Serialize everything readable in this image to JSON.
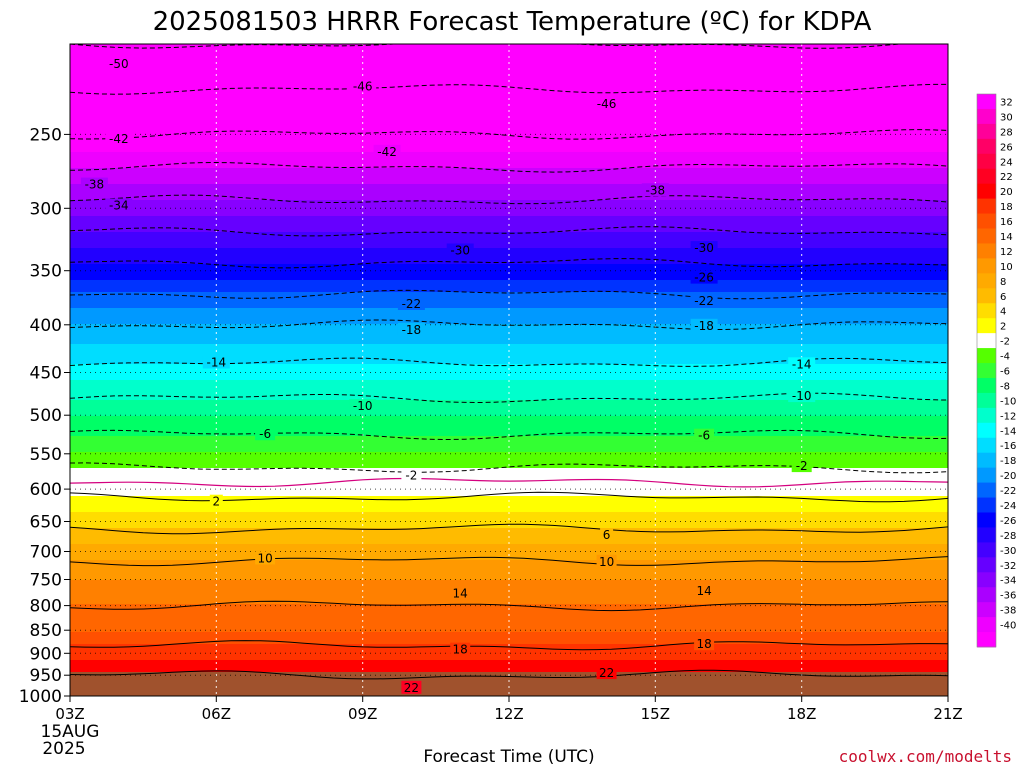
{
  "chart_data": {
    "type": "heatmap",
    "title": "2025081503 HRRR Forecast Temperature (ºC) for KDPA",
    "xlabel": "Forecast Time (UTC)",
    "ylabel": "",
    "x": [
      "03Z",
      "06Z",
      "09Z",
      "12Z",
      "15Z",
      "18Z",
      "21Z"
    ],
    "x_sub_labels": [
      "15AUG",
      "2025"
    ],
    "y_ticks": [
      250,
      300,
      350,
      400,
      450,
      500,
      550,
      600,
      650,
      700,
      750,
      800,
      850,
      900,
      950,
      1000
    ],
    "y_scale": "log (pressure, hPa, increasing downward)",
    "ylim": [
      200,
      1000
    ],
    "colorbar": {
      "labels": [
        32,
        30,
        28,
        26,
        24,
        22,
        20,
        18,
        16,
        14,
        12,
        10,
        8,
        6,
        4,
        2,
        -2,
        -4,
        -6,
        -8,
        -10,
        -12,
        -14,
        -16,
        -18,
        -20,
        -22,
        -24,
        -26,
        -28,
        -30,
        -32,
        -34,
        -36,
        -38,
        -40
      ],
      "colors": [
        "#ff00ff",
        "#ff00cc",
        "#ff0099",
        "#ff0066",
        "#ff0044",
        "#ff0022",
        "#ff0000",
        "#ff3300",
        "#ff5000",
        "#ff6600",
        "#ff8000",
        "#ff9900",
        "#ffaa00",
        "#ffbb00",
        "#ffdd00",
        "#ffff00",
        "#ffffff",
        "#55ff00",
        "#33ff33",
        "#00ff66",
        "#00ff99",
        "#00ffcc",
        "#00ffff",
        "#00ddff",
        "#00bbff",
        "#0099ff",
        "#0066ff",
        "#0033ff",
        "#0000ff",
        "#2200ff",
        "#4400ff",
        "#6600ff",
        "#8800ff",
        "#aa00ff",
        "#cc00ff",
        "#ee00ff",
        "#ff00ff"
      ]
    },
    "temperature_profile": [
      {
        "pressure": 1000,
        "temp": 24
      },
      {
        "pressure": 950,
        "temp": 22
      },
      {
        "pressure": 900,
        "temp": 19
      },
      {
        "pressure": 850,
        "temp": 16
      },
      {
        "pressure": 800,
        "temp": 14
      },
      {
        "pressure": 750,
        "temp": 12
      },
      {
        "pressure": 700,
        "temp": 9
      },
      {
        "pressure": 650,
        "temp": 5
      },
      {
        "pressure": 600,
        "temp": 1
      },
      {
        "pressure": 550,
        "temp": -4
      },
      {
        "pressure": 500,
        "temp": -8
      },
      {
        "pressure": 450,
        "temp": -13
      },
      {
        "pressure": 400,
        "temp": -18
      },
      {
        "pressure": 350,
        "temp": -25
      },
      {
        "pressure": 300,
        "temp": -33
      },
      {
        "pressure": 250,
        "temp": -42
      },
      {
        "pressure": 200,
        "temp": -50
      }
    ],
    "contour_labels": [
      {
        "time": 1.0,
        "pressure": 210,
        "text": "-50"
      },
      {
        "time": 6.0,
        "pressure": 222,
        "text": "-46"
      },
      {
        "time": 11.0,
        "pressure": 232,
        "text": "-46"
      },
      {
        "time": 1.0,
        "pressure": 253,
        "text": "-42"
      },
      {
        "time": 6.5,
        "pressure": 261,
        "text": "-42"
      },
      {
        "time": 0.5,
        "pressure": 283,
        "text": "-38"
      },
      {
        "time": 12.0,
        "pressure": 287,
        "text": "-38"
      },
      {
        "time": 1.0,
        "pressure": 298,
        "text": "-34"
      },
      {
        "time": 8.0,
        "pressure": 333,
        "text": "-30"
      },
      {
        "time": 13.0,
        "pressure": 331,
        "text": "-30"
      },
      {
        "time": 13.0,
        "pressure": 356,
        "text": "-26"
      },
      {
        "time": 7.0,
        "pressure": 380,
        "text": "-22"
      },
      {
        "time": 13.0,
        "pressure": 377,
        "text": "-22"
      },
      {
        "time": 7.0,
        "pressure": 405,
        "text": "-18"
      },
      {
        "time": 13.0,
        "pressure": 401,
        "text": "-18"
      },
      {
        "time": 3.0,
        "pressure": 439,
        "text": "-14"
      },
      {
        "time": 15.0,
        "pressure": 441,
        "text": "-14"
      },
      {
        "time": 6.0,
        "pressure": 489,
        "text": "-10"
      },
      {
        "time": 15.0,
        "pressure": 477,
        "text": "-10"
      },
      {
        "time": 4.0,
        "pressure": 524,
        "text": "-6"
      },
      {
        "time": 13.0,
        "pressure": 526,
        "text": "-6"
      },
      {
        "time": 7.0,
        "pressure": 580,
        "text": "-2"
      },
      {
        "time": 15.0,
        "pressure": 567,
        "text": "-2"
      },
      {
        "time": 3.0,
        "pressure": 619,
        "text": "2"
      },
      {
        "time": 11.0,
        "pressure": 672,
        "text": "6"
      },
      {
        "time": 4.0,
        "pressure": 712,
        "text": "10"
      },
      {
        "time": 11.0,
        "pressure": 718,
        "text": "10"
      },
      {
        "time": 8.0,
        "pressure": 776,
        "text": "14"
      },
      {
        "time": 13.0,
        "pressure": 772,
        "text": "14"
      },
      {
        "time": 8.0,
        "pressure": 892,
        "text": "18"
      },
      {
        "time": 13.0,
        "pressure": 880,
        "text": "18"
      },
      {
        "time": 7.0,
        "pressure": 980,
        "text": "22"
      },
      {
        "time": 11.0,
        "pressure": 945,
        "text": "22"
      }
    ],
    "credit": "coolwx.com/modelts"
  }
}
